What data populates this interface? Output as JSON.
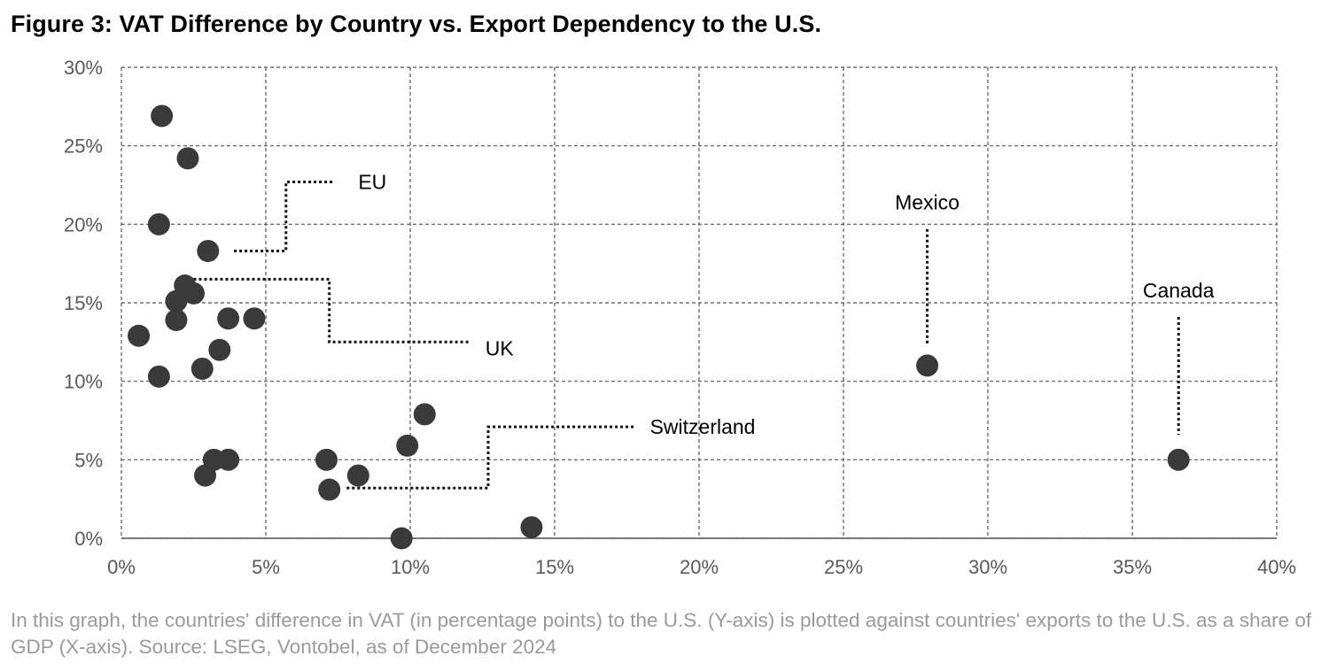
{
  "title": "Figure 3: VAT Difference by Country vs. Export Dependency to the U.S.",
  "caption": "In this graph, the countries' difference in VAT (in percentage points) to the U.S. (Y-axis) is plotted against countries' exports to the U.S. as a share of GDP (X-axis). Source: LSEG, Vontobel, as of December 2024",
  "chart_data": {
    "type": "scatter",
    "title": "Figure 3: VAT Difference by Country vs. Export Dependency to the U.S.",
    "xlabel": "",
    "ylabel": "",
    "xlim": [
      0,
      40
    ],
    "ylim": [
      0,
      30
    ],
    "x_ticks": [
      0,
      5,
      10,
      15,
      20,
      25,
      30,
      35,
      40
    ],
    "y_ticks": [
      0,
      5,
      10,
      15,
      20,
      25,
      30
    ],
    "x_tick_labels": [
      "0%",
      "5%",
      "10%",
      "15%",
      "20%",
      "25%",
      "30%",
      "35%",
      "40%"
    ],
    "y_tick_labels": [
      "0%",
      "5%",
      "10%",
      "15%",
      "20%",
      "25%",
      "30%"
    ],
    "grid": true,
    "marker_color": "#3a3a3a",
    "points": [
      {
        "x": 1.4,
        "y": 26.9
      },
      {
        "x": 2.3,
        "y": 24.2
      },
      {
        "x": 1.3,
        "y": 20.0
      },
      {
        "x": 3.0,
        "y": 18.3
      },
      {
        "x": 2.2,
        "y": 16.1
      },
      {
        "x": 2.5,
        "y": 15.6
      },
      {
        "x": 1.9,
        "y": 15.1
      },
      {
        "x": 1.9,
        "y": 13.9
      },
      {
        "x": 3.7,
        "y": 14.0
      },
      {
        "x": 4.6,
        "y": 14.0
      },
      {
        "x": 0.6,
        "y": 12.9
      },
      {
        "x": 3.4,
        "y": 12.0
      },
      {
        "x": 2.8,
        "y": 10.8
      },
      {
        "x": 1.3,
        "y": 10.3
      },
      {
        "x": 3.2,
        "y": 5.0
      },
      {
        "x": 3.7,
        "y": 5.0
      },
      {
        "x": 2.9,
        "y": 4.0
      },
      {
        "x": 7.1,
        "y": 5.0
      },
      {
        "x": 7.2,
        "y": 3.1
      },
      {
        "x": 8.2,
        "y": 4.0
      },
      {
        "x": 9.9,
        "y": 5.9
      },
      {
        "x": 10.5,
        "y": 7.9
      },
      {
        "x": 9.7,
        "y": 0.0
      },
      {
        "x": 14.2,
        "y": 0.7
      },
      {
        "x": 27.9,
        "y": 11.0
      },
      {
        "x": 36.6,
        "y": 5.0
      }
    ],
    "annotations": [
      {
        "label": "EU",
        "point": {
          "x": 3.0,
          "y": 18.3
        },
        "path": [
          [
            3.9,
            18.3
          ],
          [
            5.7,
            18.3
          ],
          [
            5.7,
            22.7
          ],
          [
            7.4,
            22.7
          ]
        ],
        "text_at": {
          "x": 8.2,
          "y": 22.7
        },
        "anchor": "start"
      },
      {
        "label": "UK",
        "point": {
          "x": 2.5,
          "y": 16.5
        },
        "path": [
          [
            2.5,
            16.5
          ],
          [
            7.2,
            16.5
          ],
          [
            7.2,
            12.5
          ],
          [
            12.1,
            12.5
          ]
        ],
        "text_at": {
          "x": 12.6,
          "y": 12.1
        },
        "anchor": "start"
      },
      {
        "label": "Switzerland",
        "point": {
          "x": 7.2,
          "y": 3.1
        },
        "path": [
          [
            7.8,
            3.2
          ],
          [
            12.7,
            3.2
          ],
          [
            12.7,
            7.1
          ],
          [
            17.8,
            7.1
          ]
        ],
        "text_at": {
          "x": 18.3,
          "y": 7.1
        },
        "anchor": "start"
      },
      {
        "label": "Mexico",
        "point": {
          "x": 27.9,
          "y": 11.0
        },
        "path": [
          [
            27.9,
            19.7
          ],
          [
            27.9,
            12.3
          ]
        ],
        "text_at": {
          "x": 27.9,
          "y": 21.4
        },
        "anchor": "middle"
      },
      {
        "label": "Canada",
        "point": {
          "x": 36.6,
          "y": 5.0
        },
        "path": [
          [
            36.6,
            14.1
          ],
          [
            36.6,
            6.6
          ]
        ],
        "text_at": {
          "x": 36.6,
          "y": 15.8
        },
        "anchor": "middle"
      }
    ]
  }
}
